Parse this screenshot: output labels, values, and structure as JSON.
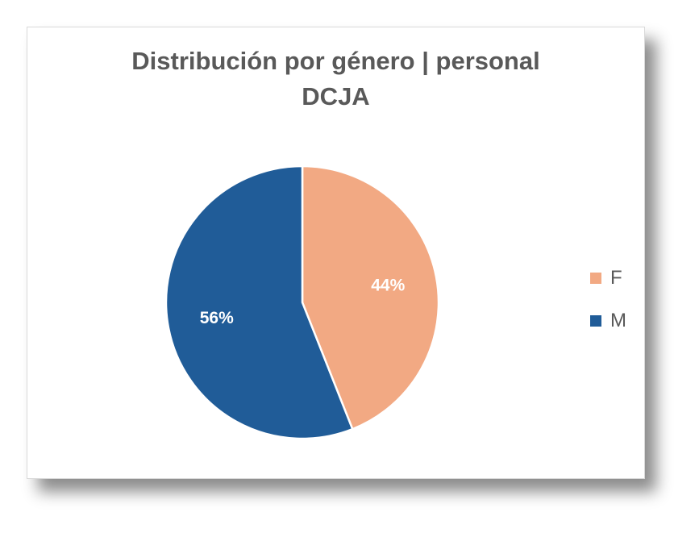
{
  "chart_data": {
    "type": "pie",
    "title_lines": [
      "Distribución por género | personal",
      "DCJA"
    ],
    "slices": [
      {
        "name": "F",
        "value": 44,
        "label": "44%",
        "color": "#F2A983"
      },
      {
        "name": "M",
        "value": 56,
        "label": "56%",
        "color": "#205C98"
      }
    ],
    "legend_position": "right",
    "data_labels_color": "#FFFFFF",
    "start_angle_deg": 0,
    "direction": "clockwise"
  }
}
